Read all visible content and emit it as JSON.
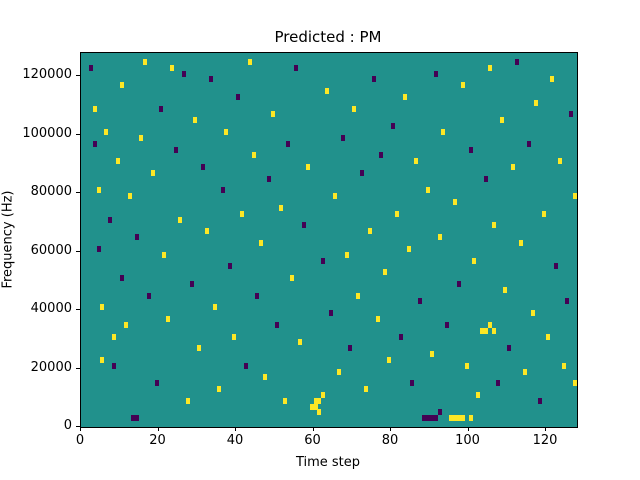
{
  "chart_data": {
    "type": "heatmap",
    "title": "Predicted : PM",
    "xlabel": "Time step",
    "ylabel": "Frequency (Hz)",
    "xlim": [
      0,
      128
    ],
    "ylim": [
      0,
      128000
    ],
    "x_ticks": [
      0,
      20,
      40,
      60,
      80,
      100,
      120
    ],
    "y_ticks": [
      0,
      20000,
      40000,
      60000,
      80000,
      100000,
      120000
    ],
    "grid": false,
    "legend": "none",
    "background_color": "#21918c",
    "high_color": "#fde725",
    "low_color": "#440154",
    "point_format": "[time_step, frequency_kHz, value] where value 1=yellow(high) 0=dark(low)",
    "points": [
      [
        2,
        122,
        0
      ],
      [
        3,
        108,
        1
      ],
      [
        3,
        96,
        0
      ],
      [
        4,
        80,
        1
      ],
      [
        4,
        60,
        0
      ],
      [
        5,
        40,
        1
      ],
      [
        5,
        22,
        1
      ],
      [
        6,
        100,
        1
      ],
      [
        7,
        70,
        0
      ],
      [
        8,
        30,
        1
      ],
      [
        8,
        20,
        0
      ],
      [
        9,
        90,
        1
      ],
      [
        10,
        116,
        1
      ],
      [
        10,
        50,
        0
      ],
      [
        11,
        34,
        1
      ],
      [
        12,
        78,
        1
      ],
      [
        13,
        2,
        0
      ],
      [
        14,
        2,
        0
      ],
      [
        14,
        64,
        0
      ],
      [
        15,
        98,
        1
      ],
      [
        16,
        124,
        1
      ],
      [
        17,
        44,
        0
      ],
      [
        18,
        86,
        1
      ],
      [
        19,
        14,
        0
      ],
      [
        20,
        108,
        0
      ],
      [
        21,
        58,
        1
      ],
      [
        22,
        36,
        1
      ],
      [
        23,
        122,
        1
      ],
      [
        24,
        94,
        0
      ],
      [
        25,
        70,
        1
      ],
      [
        26,
        120,
        0
      ],
      [
        27,
        8,
        1
      ],
      [
        28,
        48,
        0
      ],
      [
        29,
        104,
        1
      ],
      [
        30,
        26,
        1
      ],
      [
        31,
        88,
        0
      ],
      [
        32,
        66,
        1
      ],
      [
        33,
        118,
        0
      ],
      [
        34,
        40,
        1
      ],
      [
        35,
        12,
        1
      ],
      [
        36,
        80,
        0
      ],
      [
        37,
        100,
        1
      ],
      [
        38,
        54,
        0
      ],
      [
        39,
        30,
        1
      ],
      [
        40,
        112,
        0
      ],
      [
        41,
        72,
        1
      ],
      [
        42,
        20,
        0
      ],
      [
        43,
        124,
        1
      ],
      [
        44,
        92,
        1
      ],
      [
        45,
        44,
        0
      ],
      [
        46,
        62,
        1
      ],
      [
        47,
        16,
        1
      ],
      [
        48,
        84,
        0
      ],
      [
        49,
        106,
        1
      ],
      [
        50,
        34,
        0
      ],
      [
        51,
        74,
        1
      ],
      [
        52,
        8,
        1
      ],
      [
        53,
        96,
        0
      ],
      [
        54,
        50,
        1
      ],
      [
        55,
        122,
        0
      ],
      [
        56,
        28,
        1
      ],
      [
        57,
        68,
        0
      ],
      [
        58,
        88,
        1
      ],
      [
        59,
        6,
        1
      ],
      [
        60,
        8,
        1
      ],
      [
        60,
        6,
        1
      ],
      [
        61,
        8,
        1
      ],
      [
        61,
        4,
        1
      ],
      [
        62,
        10,
        1
      ],
      [
        62,
        56,
        0
      ],
      [
        63,
        114,
        1
      ],
      [
        64,
        38,
        0
      ],
      [
        65,
        78,
        1
      ],
      [
        66,
        18,
        1
      ],
      [
        67,
        98,
        0
      ],
      [
        68,
        58,
        1
      ],
      [
        69,
        26,
        0
      ],
      [
        70,
        108,
        1
      ],
      [
        71,
        44,
        1
      ],
      [
        72,
        86,
        0
      ],
      [
        73,
        12,
        1
      ],
      [
        74,
        66,
        1
      ],
      [
        75,
        118,
        0
      ],
      [
        76,
        36,
        1
      ],
      [
        77,
        92,
        0
      ],
      [
        78,
        52,
        1
      ],
      [
        79,
        22,
        1
      ],
      [
        80,
        102,
        0
      ],
      [
        81,
        72,
        1
      ],
      [
        82,
        30,
        0
      ],
      [
        83,
        112,
        1
      ],
      [
        84,
        60,
        1
      ],
      [
        85,
        14,
        0
      ],
      [
        86,
        90,
        1
      ],
      [
        87,
        42,
        0
      ],
      [
        88,
        2,
        0
      ],
      [
        89,
        2,
        0
      ],
      [
        89,
        80,
        1
      ],
      [
        90,
        2,
        0
      ],
      [
        90,
        24,
        1
      ],
      [
        91,
        2,
        0
      ],
      [
        91,
        120,
        0
      ],
      [
        92,
        4,
        0
      ],
      [
        92,
        64,
        1
      ],
      [
        93,
        100,
        1
      ],
      [
        94,
        34,
        0
      ],
      [
        95,
        2,
        1
      ],
      [
        96,
        2,
        1
      ],
      [
        96,
        76,
        1
      ],
      [
        97,
        2,
        1
      ],
      [
        97,
        48,
        0
      ],
      [
        98,
        2,
        1
      ],
      [
        98,
        116,
        1
      ],
      [
        99,
        20,
        1
      ],
      [
        100,
        2,
        1
      ],
      [
        100,
        94,
        0
      ],
      [
        101,
        56,
        1
      ],
      [
        102,
        10,
        1
      ],
      [
        103,
        32,
        1
      ],
      [
        104,
        32,
        1
      ],
      [
        104,
        84,
        0
      ],
      [
        105,
        34,
        1
      ],
      [
        105,
        122,
        1
      ],
      [
        106,
        32,
        1
      ],
      [
        106,
        68,
        1
      ],
      [
        107,
        14,
        0
      ],
      [
        108,
        104,
        1
      ],
      [
        109,
        46,
        1
      ],
      [
        110,
        26,
        0
      ],
      [
        111,
        88,
        1
      ],
      [
        112,
        124,
        0
      ],
      [
        113,
        62,
        1
      ],
      [
        114,
        18,
        1
      ],
      [
        115,
        96,
        0
      ],
      [
        116,
        38,
        1
      ],
      [
        117,
        110,
        1
      ],
      [
        118,
        8,
        0
      ],
      [
        119,
        72,
        1
      ],
      [
        120,
        30,
        1
      ],
      [
        121,
        118,
        1
      ],
      [
        122,
        54,
        0
      ],
      [
        123,
        90,
        1
      ],
      [
        124,
        20,
        1
      ],
      [
        125,
        42,
        0
      ],
      [
        126,
        106,
        0
      ],
      [
        127,
        14,
        1
      ],
      [
        127,
        78,
        1
      ]
    ]
  }
}
